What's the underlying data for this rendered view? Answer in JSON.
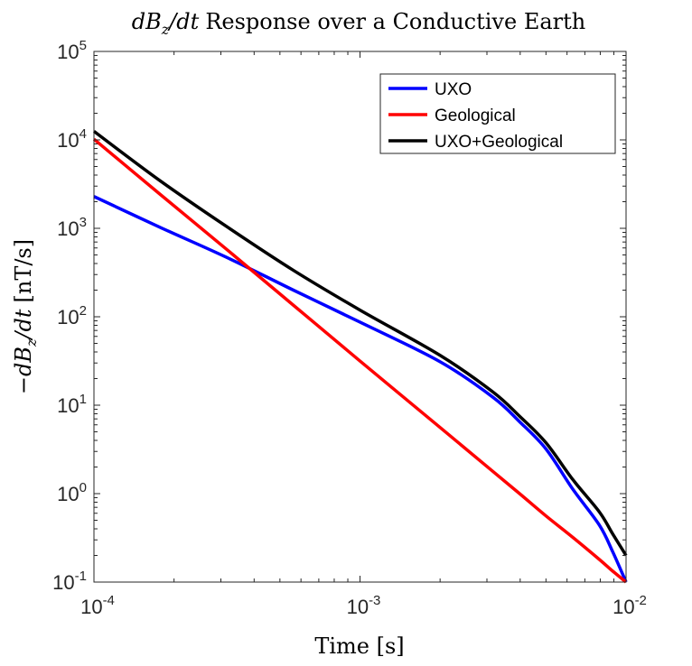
{
  "chart_data": {
    "type": "line",
    "title": {
      "math": [
        "dB",
        "z",
        "/dt"
      ],
      "text": "Response over a Conductive Earth"
    },
    "xlabel": "Time [s]",
    "ylabel": {
      "math": [
        "−dB",
        "z",
        "/dt"
      ],
      "text": "[nT/s]"
    },
    "xscale": "log",
    "yscale": "log",
    "xlim": [
      0.0001,
      0.01
    ],
    "ylim": [
      0.1,
      100000
    ],
    "grid": false,
    "legend_position": "top-right",
    "xticks": [
      {
        "value": 0.0001,
        "base": "10",
        "exp": "-4"
      },
      {
        "value": 0.001,
        "base": "10",
        "exp": "-3"
      },
      {
        "value": 0.01,
        "base": "10",
        "exp": "-2"
      }
    ],
    "yticks": [
      {
        "value": 0.1,
        "base": "10",
        "exp": "-1"
      },
      {
        "value": 1,
        "base": "10",
        "exp": "0"
      },
      {
        "value": 10,
        "base": "10",
        "exp": "1"
      },
      {
        "value": 100,
        "base": "10",
        "exp": "2"
      },
      {
        "value": 1000,
        "base": "10",
        "exp": "3"
      },
      {
        "value": 10000,
        "base": "10",
        "exp": "4"
      },
      {
        "value": 100000,
        "base": "10",
        "exp": "5"
      }
    ],
    "x": [
      0.0001,
      0.000178,
      0.000316,
      0.000562,
      0.001,
      0.002,
      0.00316,
      0.00398,
      0.005,
      0.00631,
      0.00794,
      0.00891,
      0.01
    ],
    "series": [
      {
        "name": "UXO",
        "color": "#0000ff",
        "values": [
          2290,
          1020,
          468,
          200,
          87,
          31,
          12.3,
          6.5,
          3.2,
          1.12,
          0.44,
          0.22,
          0.1
        ]
      },
      {
        "name": "Geological",
        "color": "#ff0000",
        "values": [
          10200,
          2400,
          575,
          135,
          31.6,
          5.6,
          1.78,
          1.0,
          0.56,
          0.32,
          0.18,
          0.133,
          0.1
        ]
      },
      {
        "name": "UXO+Geological",
        "color": "#000000",
        "values": [
          12500,
          3420,
          1043,
          335,
          119,
          36.6,
          14.1,
          7.5,
          3.76,
          1.44,
          0.62,
          0.35,
          0.2
        ]
      }
    ]
  }
}
